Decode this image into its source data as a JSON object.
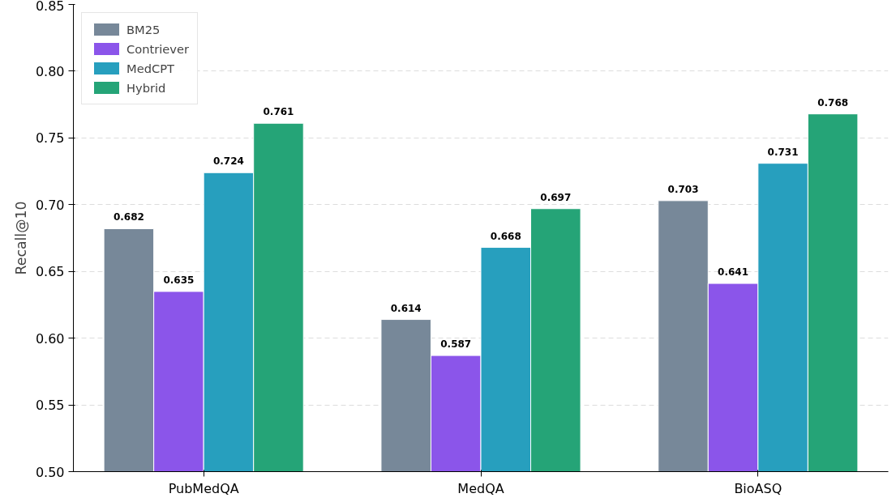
{
  "chart_data": {
    "type": "bar",
    "ylabel": "Recall@10",
    "categories": [
      "PubMedQA",
      "MedQA",
      "BioASQ"
    ],
    "series": [
      {
        "name": "BM25",
        "color": "#778899",
        "values": [
          0.682,
          0.614,
          0.703
        ]
      },
      {
        "name": "Contriever",
        "color": "#8b55ea",
        "values": [
          0.635,
          0.587,
          0.641
        ]
      },
      {
        "name": "MedCPT",
        "color": "#279fbe",
        "values": [
          0.724,
          0.668,
          0.731
        ]
      },
      {
        "name": "Hybrid",
        "color": "#25a477",
        "values": [
          0.761,
          0.697,
          0.768
        ]
      }
    ],
    "ylim": [
      0.5,
      0.85
    ],
    "yticks": [
      {
        "value": 0.5,
        "label": "0.50"
      },
      {
        "value": 0.55,
        "label": "0.55"
      },
      {
        "value": 0.6,
        "label": "0.60"
      },
      {
        "value": 0.65,
        "label": "0.65"
      },
      {
        "value": 0.7,
        "label": "0.70"
      },
      {
        "value": 0.75,
        "label": "0.75"
      },
      {
        "value": 0.8,
        "label": "0.80"
      },
      {
        "value": 0.85,
        "label": "0.85"
      }
    ],
    "grid": "y",
    "legend": "top left",
    "data_labels": true
  }
}
